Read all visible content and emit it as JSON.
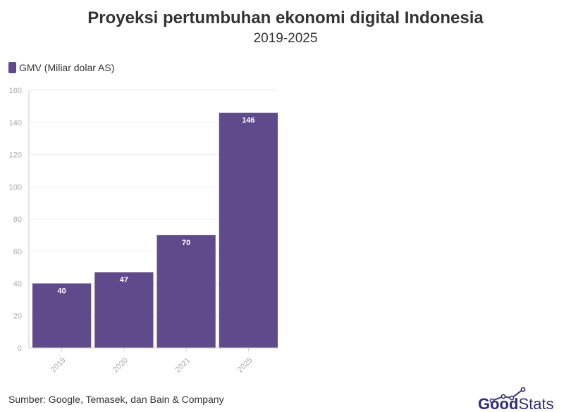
{
  "title": "Proyeksi pertumbuhan ekonomi digital Indonesia",
  "subtitle": "2019-2025",
  "legend": {
    "label": "GMV (Miliar dolar AS)"
  },
  "source": "Sumber: Google, Temasek, dan Bain & Company",
  "brand": {
    "good": "Good",
    "stats": "Stats"
  },
  "colors": {
    "bar": "#5f4a8b",
    "grid": "#eeeeee",
    "axis": "#cccccc",
    "brand": "#2e2d7a"
  },
  "chart_data": {
    "type": "bar",
    "title": "Proyeksi pertumbuhan ekonomi digital Indonesia",
    "subtitle": "2019-2025",
    "categories": [
      "2019",
      "2020",
      "2021",
      "2025"
    ],
    "series": [
      {
        "name": "GMV (Miliar dolar AS)",
        "values": [
          40,
          47,
          70,
          146
        ]
      }
    ],
    "ylim": [
      0,
      160
    ],
    "yticks": [
      0,
      20,
      40,
      60,
      80,
      100,
      120,
      140,
      160
    ],
    "grid": true,
    "legend_position": "top-left",
    "data_labels": true
  }
}
